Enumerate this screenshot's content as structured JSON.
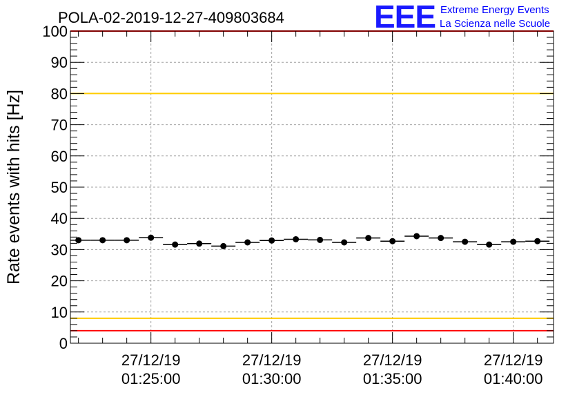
{
  "chart_data": {
    "type": "scatter",
    "title": "POLA-02-2019-12-27-409803684",
    "ylabel": "Rate events with hits [Hz]",
    "xlabel": "",
    "ylim": [
      0,
      100
    ],
    "yticks": [
      "0",
      "10",
      "20",
      "30",
      "40",
      "50",
      "60",
      "70",
      "80",
      "90",
      "100"
    ],
    "xticks": [
      {
        "date": "27/12/19",
        "time": "01:25:00"
      },
      {
        "date": "27/12/19",
        "time": "01:30:00"
      },
      {
        "date": "27/12/19",
        "time": "01:35:00"
      },
      {
        "date": "27/12/19",
        "time": "01:40:00"
      }
    ],
    "xlim": [
      "01:21:40",
      "01:41:40"
    ],
    "grid": true,
    "bin_width_seconds": 60,
    "series": [
      {
        "x": [
          "01:22:00",
          "01:23:00",
          "01:24:00",
          "01:25:00",
          "01:26:00",
          "01:27:00",
          "01:28:00",
          "01:29:00",
          "01:30:00",
          "01:31:00",
          "01:32:00",
          "01:33:00",
          "01:34:00",
          "01:35:00",
          "01:36:00",
          "01:37:00",
          "01:38:00",
          "01:39:00",
          "01:40:00",
          "01:41:00"
        ],
        "y": [
          33.0,
          33.0,
          33.0,
          33.8,
          31.6,
          31.9,
          31.1,
          32.3,
          32.9,
          33.3,
          33.1,
          32.3,
          33.7,
          32.7,
          34.3,
          33.7,
          32.5,
          31.6,
          32.5,
          32.7
        ]
      }
    ],
    "reference_lines": [
      {
        "y": 100,
        "color": "#ff0000"
      },
      {
        "y": 80,
        "color": "#ffcc00"
      },
      {
        "y": 8,
        "color": "#ffcc00"
      },
      {
        "y": 4,
        "color": "#ff0000"
      }
    ]
  },
  "logo": {
    "mark": "EEE",
    "line1": "Extreme Energy Events",
    "line2": "La Scienza nelle Scuole",
    "color": "#0000ff"
  }
}
